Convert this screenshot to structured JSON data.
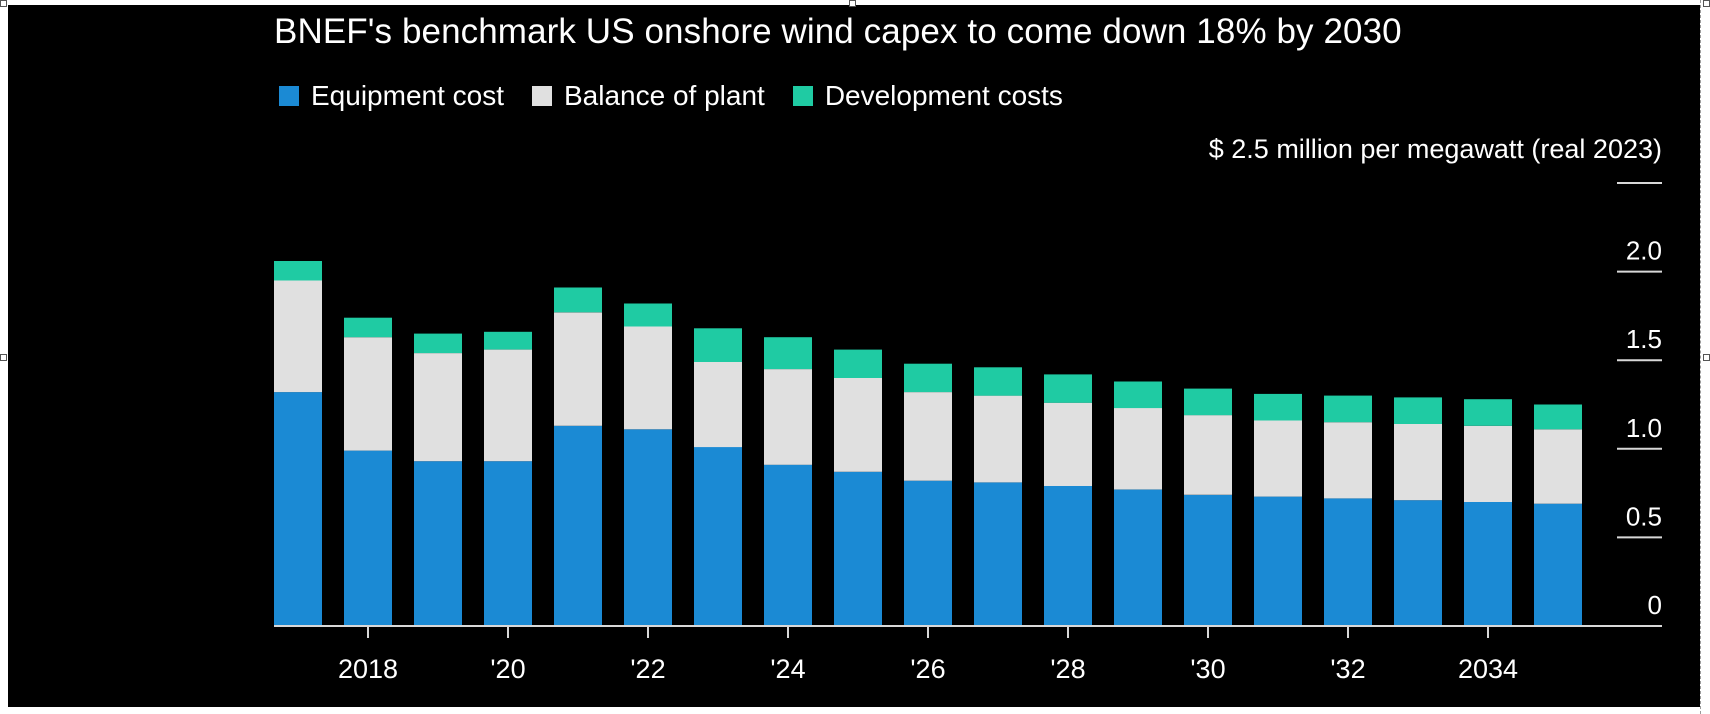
{
  "colors": {
    "background": "#000000",
    "equipment": "#1b8ad4",
    "balance": "#e0e0e0",
    "development": "#1fcba3",
    "axis": "#d8d8d8",
    "text": "#ffffff"
  },
  "chart_data": {
    "type": "bar",
    "stacked": true,
    "title": "BNEF's benchmark US onshore wind capex to come down 18% by 2030",
    "unit_label": "$ 2.5 million per megawatt (real 2023)",
    "categories": [
      "2017",
      "2018",
      "2019",
      "2020",
      "2021",
      "2022",
      "2023",
      "2024",
      "2025",
      "2026",
      "2027",
      "2028",
      "2029",
      "2030",
      "2031",
      "2032",
      "2033",
      "2034",
      "2035"
    ],
    "x_tick_labels": [
      {
        "category": "2018",
        "label": "2018"
      },
      {
        "category": "2020",
        "label": "'20"
      },
      {
        "category": "2022",
        "label": "'22"
      },
      {
        "category": "2024",
        "label": "'24"
      },
      {
        "category": "2026",
        "label": "'26"
      },
      {
        "category": "2028",
        "label": "'28"
      },
      {
        "category": "2030",
        "label": "'30"
      },
      {
        "category": "2032",
        "label": "'32"
      },
      {
        "category": "2034",
        "label": "2034"
      }
    ],
    "y_ticks": [
      {
        "value": 0,
        "label": "0"
      },
      {
        "value": 0.5,
        "label": "0.5"
      },
      {
        "value": 1.0,
        "label": "1.0"
      },
      {
        "value": 1.5,
        "label": "1.5"
      },
      {
        "value": 2.0,
        "label": "2.0"
      },
      {
        "value": 2.5,
        "label": ""
      }
    ],
    "ylim": [
      0,
      2.5
    ],
    "legend_position": "top-left",
    "series": [
      {
        "name": "Equipment cost",
        "color": "#1b8ad4",
        "values": [
          1.32,
          0.99,
          0.93,
          0.93,
          1.13,
          1.11,
          1.01,
          0.91,
          0.87,
          0.82,
          0.81,
          0.79,
          0.77,
          0.74,
          0.73,
          0.72,
          0.71,
          0.7,
          0.69
        ]
      },
      {
        "name": "Balance of plant",
        "color": "#e0e0e0",
        "values": [
          0.63,
          0.64,
          0.61,
          0.63,
          0.64,
          0.58,
          0.48,
          0.54,
          0.53,
          0.5,
          0.49,
          0.47,
          0.46,
          0.45,
          0.43,
          0.43,
          0.43,
          0.43,
          0.42
        ]
      },
      {
        "name": "Development costs",
        "color": "#1fcba3",
        "values": [
          0.11,
          0.11,
          0.11,
          0.1,
          0.14,
          0.13,
          0.19,
          0.18,
          0.16,
          0.16,
          0.16,
          0.16,
          0.15,
          0.15,
          0.15,
          0.15,
          0.15,
          0.15,
          0.14
        ]
      }
    ]
  }
}
